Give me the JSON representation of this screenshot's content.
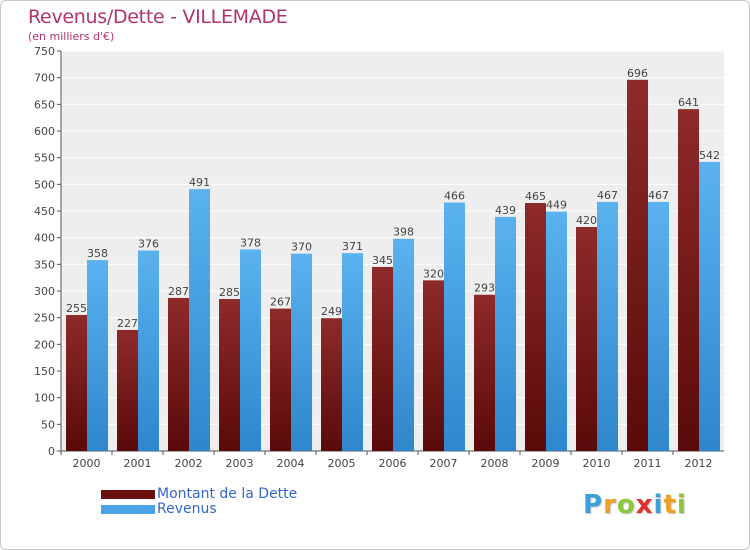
{
  "chart_data": {
    "type": "bar",
    "title": "Revenus/Dette - VILLEMADE",
    "subtitle": "(en milliers d'€)",
    "categories": [
      "2000",
      "2001",
      "2002",
      "2003",
      "2004",
      "2005",
      "2006",
      "2007",
      "2008",
      "2009",
      "2010",
      "2011",
      "2012"
    ],
    "series": [
      {
        "name": "Montant de la Dette",
        "color": "#7a1f1f",
        "values": [
          255,
          227,
          287,
          285,
          267,
          249,
          345,
          320,
          293,
          465,
          420,
          696,
          641
        ]
      },
      {
        "name": "Revenus",
        "color": "#4aa3e6",
        "values": [
          358,
          376,
          491,
          378,
          370,
          371,
          398,
          466,
          439,
          449,
          467,
          467,
          542
        ]
      }
    ],
    "ylim": [
      0,
      750
    ],
    "yticks": [
      0,
      50,
      100,
      150,
      200,
      250,
      300,
      350,
      400,
      450,
      500,
      550,
      600,
      650,
      700,
      750
    ],
    "grid": true,
    "legend_position": "bottom-left"
  },
  "logo": {
    "letters": [
      "P",
      "r",
      "o",
      "x",
      "i",
      "t",
      "i"
    ],
    "colors": [
      "#3aa0d8",
      "#f0a020",
      "#8cc63f",
      "#e03030",
      "#3aa0d8",
      "#f0a020",
      "#8cc63f"
    ]
  }
}
